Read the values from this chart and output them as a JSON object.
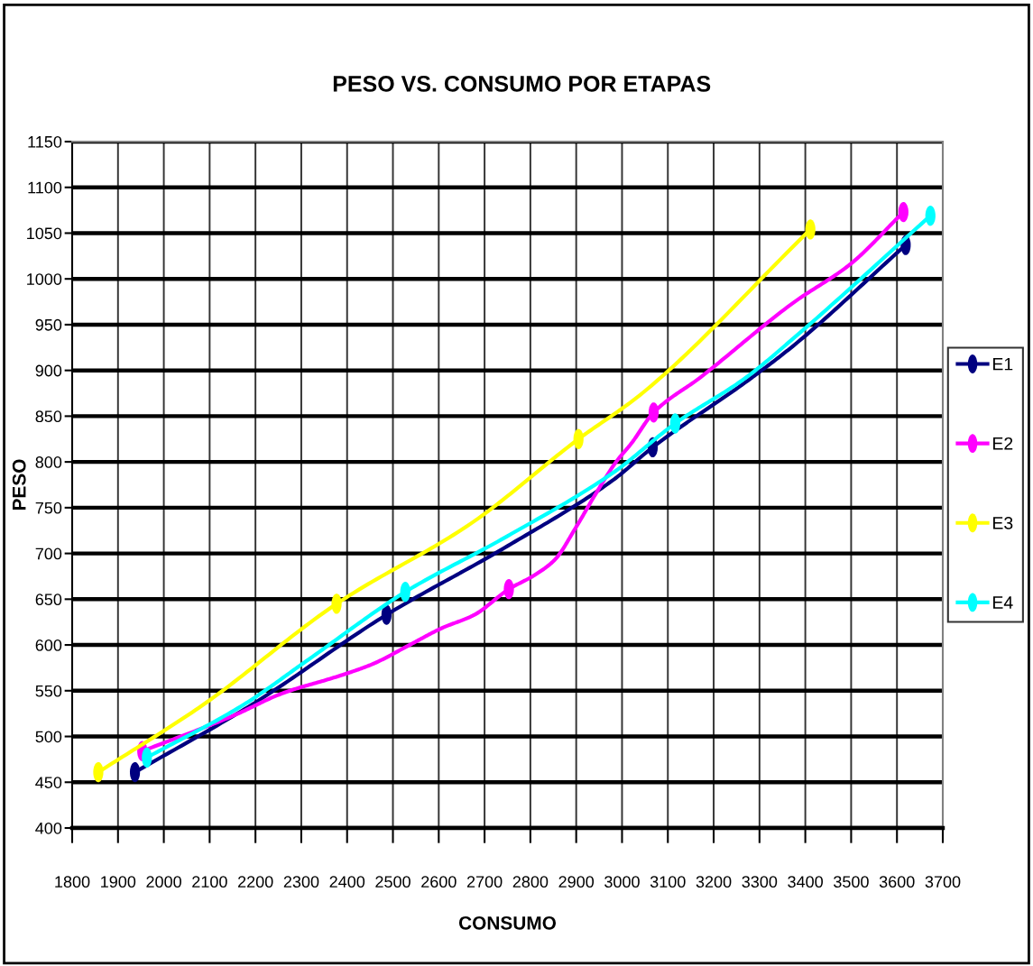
{
  "chart_data": {
    "type": "line",
    "title": "PESO VS. CONSUMO POR ETAPAS",
    "xlabel": "CONSUMO",
    "ylabel": "PESO",
    "xlim": [
      1800,
      3700
    ],
    "xticks": [
      1800,
      1900,
      2000,
      2100,
      2200,
      2300,
      2400,
      2500,
      2600,
      2700,
      2800,
      2900,
      3000,
      3100,
      3200,
      3300,
      3400,
      3500,
      3600,
      3700
    ],
    "ylim": [
      400,
      1150
    ],
    "yticks": [
      400,
      450,
      500,
      550,
      600,
      650,
      700,
      750,
      800,
      850,
      900,
      950,
      1000,
      1050,
      1100,
      1150
    ],
    "grid": true,
    "legend": "right",
    "marker": "circle",
    "line_style": "solid",
    "series": [
      {
        "marker": "none",
        "color": "#000080",
        "x": [
          1937,
          2193,
          2486,
          2743,
          2980,
          3067,
          3283,
          3374,
          3619
        ],
        "values": [
          461,
          535,
          633,
          706,
          780,
          816,
          892,
          927,
          1037
        ]
      },
      {
        "type": "scatter",
        "name": "E1",
        "color": "#000080",
        "x": [
          1937,
          2486,
          3067,
          3619
        ],
        "values": [
          461,
          633,
          816,
          1037
        ]
      },
      {
        "marker": "none",
        "color": "#ff00ff",
        "x": [
          1953,
          2153,
          2258,
          2388,
          2455,
          2540,
          2605,
          2678,
          2753,
          2808,
          2853,
          2900,
          2940,
          2987,
          3020,
          3069,
          3170,
          3374,
          3498,
          3614
        ],
        "values": [
          484,
          523,
          547,
          567,
          579,
          601,
          618,
          633,
          661,
          676,
          693,
          729,
          763,
          800,
          820,
          854,
          892,
          974,
          1016,
          1073
        ]
      },
      {
        "type": "scatter",
        "name": "E2",
        "color": "#ff00ff",
        "x": [
          1953,
          2753,
          3069,
          3614
        ],
        "values": [
          484,
          661,
          854,
          1073
        ]
      },
      {
        "marker": "none",
        "color": "#ffff00",
        "x": [
          1857,
          2084,
          2377,
          2671,
          2905,
          3039,
          3411
        ],
        "values": [
          461,
          534,
          645,
          733,
          825,
          873,
          1054
        ]
      },
      {
        "type": "scatter",
        "name": "E3",
        "color": "#ffff00",
        "x": [
          1857,
          2377,
          2905,
          3411
        ],
        "values": [
          461,
          645,
          825,
          1054
        ]
      },
      {
        "marker": "none",
        "color": "#00ffff",
        "x": [
          1963,
          2175,
          2310,
          2527,
          2743,
          2980,
          3116,
          3270,
          3374,
          3673
        ],
        "values": [
          477,
          535,
          582,
          658,
          717,
          788,
          842,
          892,
          935,
          1069
        ]
      },
      {
        "type": "scatter",
        "name": "E4",
        "color": "#00ffff",
        "x": [
          1963,
          2527,
          3116,
          3673
        ],
        "values": [
          477,
          658,
          842,
          1069
        ]
      }
    ]
  }
}
